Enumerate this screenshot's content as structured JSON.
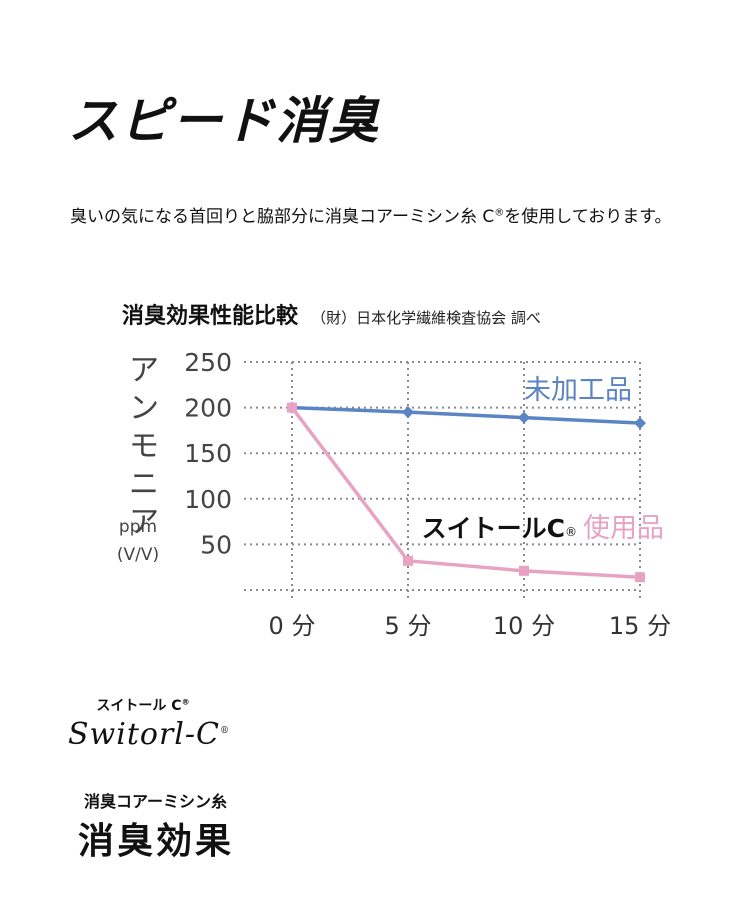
{
  "header": {
    "title": "スピード消臭",
    "description": "臭いの気になる首回りと脇部分に消臭コアーミシン糸 C",
    "description_mark": "®",
    "description_tail": "を使用しております。"
  },
  "chart_header": {
    "title": "消臭効果性能比較",
    "source": "（財）日本化学繊維検査協会 調べ"
  },
  "chart_data": {
    "type": "line",
    "categories": [
      "0 分",
      "5 分",
      "10 分",
      "15 分"
    ],
    "ylim": [
      0,
      250
    ],
    "yticks": [
      "250",
      "200",
      "150",
      "100",
      "50"
    ],
    "ylabel": "アンモニア",
    "ylabel_unit_1": "ppm",
    "ylabel_unit_2": "(V/V)",
    "grid": true,
    "series": [
      {
        "name": "未加工品",
        "values": [
          200,
          195,
          189,
          183
        ],
        "color": "#5b84c4",
        "marker": "diamond"
      },
      {
        "name": "使用品",
        "name_prefix": "スイトールC",
        "name_mark": "®",
        "values": [
          200,
          32,
          21,
          14
        ],
        "color": "#e8a3c3",
        "marker": "square"
      }
    ]
  },
  "brand": {
    "kana": "スイトール C",
    "kana_mark": "®",
    "script": "Switorl-C",
    "script_mark": "®",
    "product_type": "消臭コアーミシン糸",
    "effect": "消臭効果"
  }
}
